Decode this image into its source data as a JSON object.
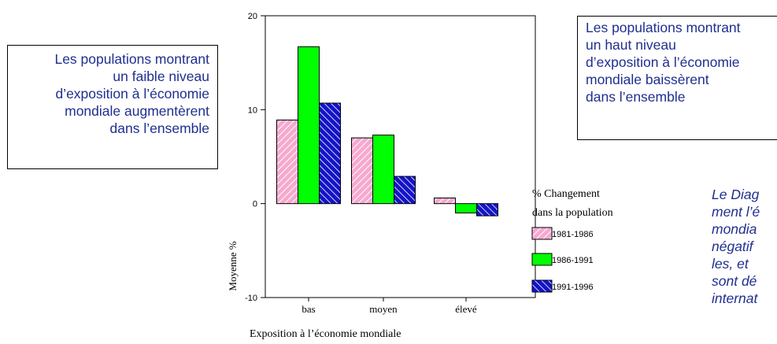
{
  "callout_left": {
    "lines": [
      "Les populations montrant",
      "un faible niveau",
      "d’exposition à l’économie",
      "mondiale augmentèrent",
      "dans l’ensemble"
    ]
  },
  "callout_right": {
    "lines": [
      "Les populations montrant",
      "un haut niveau",
      "d’exposition à l’économie",
      "mondiale baissèrent",
      "dans l’ensemble"
    ]
  },
  "side_note": {
    "lines": [
      "Le Diag",
      "ment l’é",
      "mondia",
      "négatif",
      "les,  et",
      "sont dé",
      "internat"
    ]
  },
  "colors": {
    "pink": "#f6a9cf",
    "green": "#00ff00",
    "blue": "#1414c8",
    "text_blue": "#1f2f8f"
  },
  "chart_data": {
    "type": "bar",
    "categories": [
      "bas",
      "moyen",
      "élevé"
    ],
    "series": [
      {
        "name": "1981-1986",
        "values": [
          8.9,
          7.0,
          0.6
        ],
        "color": "#f6a9cf",
        "pattern": "hatch-light"
      },
      {
        "name": "1986-1991",
        "values": [
          16.7,
          7.3,
          -1.0
        ],
        "color": "#00ff00",
        "pattern": "solid"
      },
      {
        "name": "1991-1996",
        "values": [
          10.7,
          2.9,
          -1.3
        ],
        "color": "#1414c8",
        "pattern": "hatch-dark"
      }
    ],
    "xlabel": "Exposition à l’économie mondiale",
    "ylabel": "Moyenne %",
    "ylim": [
      -10,
      20
    ],
    "yticks": [
      -10,
      0,
      10,
      20
    ],
    "legend_title": [
      "% Changement",
      "dans la population"
    ],
    "legend_position": "right",
    "grid": false
  }
}
